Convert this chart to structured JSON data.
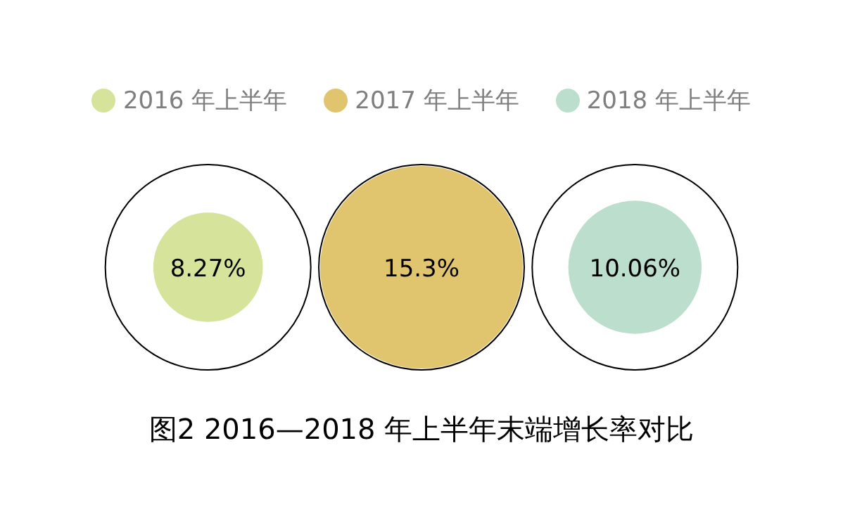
{
  "chart_data": {
    "type": "other",
    "title": "图2  2016—2018 年上半年末端增长率对比",
    "categories": [
      "2016 年上半年",
      "2017 年上半年",
      "2018 年上半年"
    ],
    "values": [
      8.27,
      15.3,
      10.06
    ],
    "value_labels": [
      "8.27%",
      "15.3%",
      "10.06%"
    ],
    "colors": [
      "#d5e49a",
      "#e1c46e",
      "#bcdfcd"
    ]
  }
}
